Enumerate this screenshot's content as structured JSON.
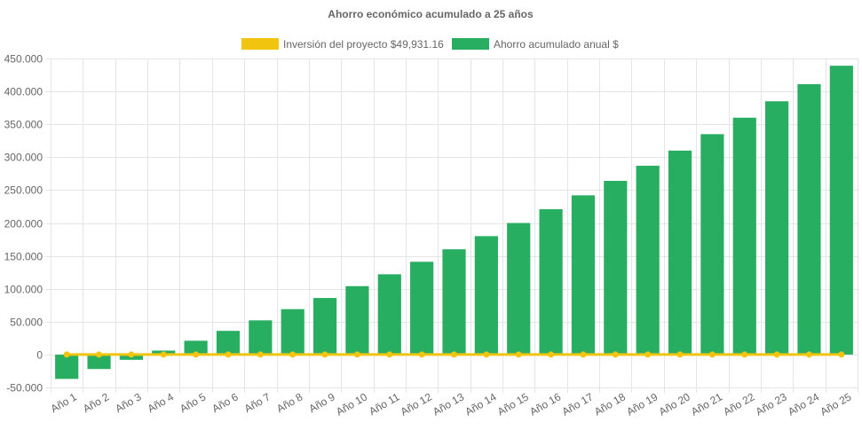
{
  "chart_data": {
    "type": "bar",
    "title": "Ahorro económico acumulado a 25 años",
    "categories": [
      "Año 1",
      "Año 2",
      "Año 3",
      "Año 4",
      "Año 5",
      "Año 6",
      "Año 7",
      "Año 8",
      "Año 9",
      "Año 10",
      "Año 11",
      "Año 12",
      "Año 13",
      "Año 14",
      "Año 15",
      "Año 16",
      "Año 17",
      "Año 18",
      "Año 19",
      "Año 20",
      "Año 21",
      "Año 22",
      "Año 23",
      "Año 24",
      "Año 25"
    ],
    "series": [
      {
        "name": "Inversión del proyecto $49,931.16",
        "type": "line",
        "color": "#f1c40f",
        "values": [
          0,
          0,
          0,
          0,
          0,
          0,
          0,
          0,
          0,
          0,
          0,
          0,
          0,
          0,
          0,
          0,
          0,
          0,
          0,
          0,
          0,
          0,
          0,
          0,
          0
        ]
      },
      {
        "name": "Ahorro acumulado anual $",
        "type": "bar",
        "color": "#27ae60",
        "values": [
          -37000,
          -22000,
          -8000,
          6000,
          21000,
          36000,
          52000,
          69000,
          86000,
          104000,
          122000,
          141000,
          160000,
          180000,
          200000,
          221000,
          242000,
          264000,
          287000,
          310000,
          335000,
          360000,
          385000,
          411000,
          439000
        ]
      }
    ],
    "ylim": [
      -50000,
      450000
    ],
    "yticks": [
      "450.000",
      "400.000",
      "350.000",
      "300.000",
      "250.000",
      "200.000",
      "150.000",
      "100.000",
      "50.000",
      "0",
      "-50.000"
    ],
    "ytick_values": [
      450000,
      400000,
      350000,
      300000,
      250000,
      200000,
      150000,
      100000,
      50000,
      0,
      -50000
    ],
    "grid": true,
    "legend_position": "top"
  }
}
